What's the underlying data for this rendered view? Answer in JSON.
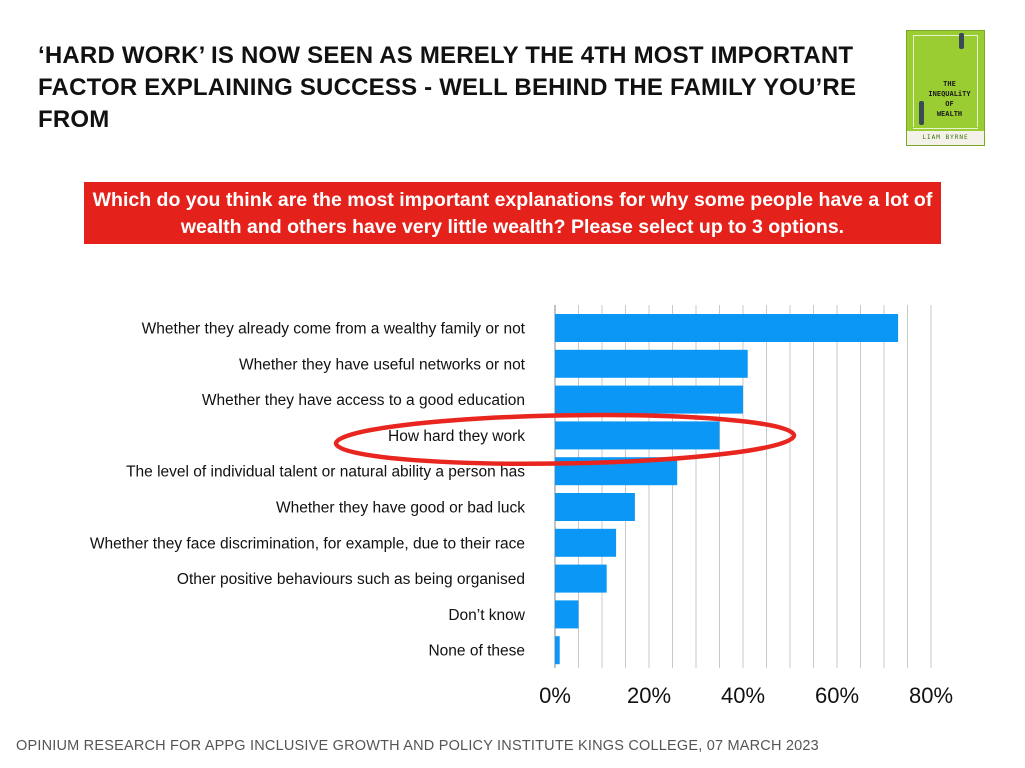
{
  "headline": "‘HARD WORK’ IS NOW SEEN AS MERELY THE 4TH MOST IMPORTANT FACTOR EXPLAINING SUCCESS - WELL BEHIND THE FAMILY YOU’RE FROM",
  "book_cover": {
    "title": "THE\nINEQUALiTY\nOF\nWEALTH",
    "author": "LIAM BYRNE"
  },
  "question": "Which do you think are the most important explanations for why some people have a lot of wealth and others have very little wealth?  Please select up to 3 options.",
  "source": "OPINIUM RESEARCH FOR APPG INCLUSIVE GROWTH AND POLICY INSTITUTE KINGS COLLEGE, 07 MARCH 2023",
  "colors": {
    "bar": "#0b97f5",
    "highlight": "#e8261f",
    "banner": "#e4221b"
  },
  "chart_data": {
    "type": "bar",
    "orientation": "horizontal",
    "categories": [
      "Whether they already come from a wealthy family or not",
      "Whether they have useful networks or not",
      "Whether they have access to a good education",
      "How hard they work",
      "The level of individual talent or natural ability a person has",
      "Whether they have good or bad luck",
      "Whether they face discrimination, for example, due to their race",
      "Other positive behaviours such as being organised",
      "Don’t know",
      "None of these"
    ],
    "values": [
      73,
      41,
      40,
      35,
      26,
      17,
      13,
      11,
      5,
      1
    ],
    "xlim": [
      0,
      80
    ],
    "xticks": [
      "0%",
      "20%",
      "40%",
      "60%",
      "80%"
    ],
    "xtick_values": [
      0,
      20,
      40,
      60,
      80
    ],
    "grid": true,
    "highlighted_category": "How hard they work"
  }
}
